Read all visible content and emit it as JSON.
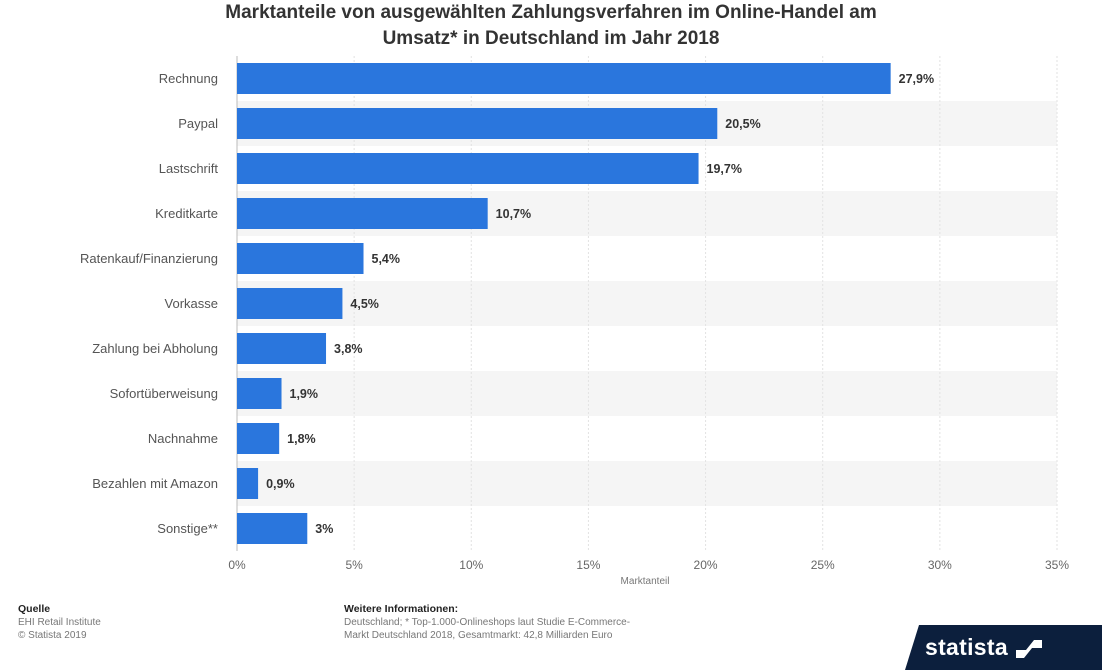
{
  "chart_data": {
    "type": "bar",
    "orientation": "horizontal",
    "title_lines": [
      "Marktanteile von ausgewählten Zahlungsverfahren im Online-Handel am",
      "Umsatz* in Deutschland im Jahr 2018"
    ],
    "xlabel": "Marktanteil",
    "xlim": [
      0,
      35
    ],
    "x_ticks": [
      0,
      5,
      10,
      15,
      20,
      25,
      30,
      35
    ],
    "x_tick_labels": [
      "0%",
      "5%",
      "10%",
      "15%",
      "20%",
      "25%",
      "30%",
      "35%"
    ],
    "categories": [
      "Rechnung",
      "Paypal",
      "Lastschrift",
      "Kreditkarte",
      "Ratenkauf/Finanzierung",
      "Vorkasse",
      "Zahlung bei Abholung",
      "Sofortüberweisung",
      "Nachnahme",
      "Bezahlen mit Amazon",
      "Sonstige**"
    ],
    "values": [
      27.9,
      20.5,
      19.7,
      10.7,
      5.4,
      4.5,
      3.8,
      1.9,
      1.8,
      0.9,
      3
    ],
    "value_labels": [
      "27,9%",
      "20,5%",
      "19,7%",
      "10,7%",
      "5,4%",
      "4,5%",
      "3,8%",
      "1,9%",
      "1,8%",
      "0,9%",
      "3%"
    ],
    "bar_color": "#2a76dd",
    "grid": true,
    "alternating_row_band_color": "#f5f5f5"
  },
  "footer": {
    "source_heading": "Quelle",
    "source_lines": [
      "EHI Retail Institute",
      "© Statista 2019"
    ],
    "info_heading": "Weitere Informationen:",
    "info_lines": [
      "Deutschland; * Top-1.000-Onlineshops laut Studie E-Commerce-",
      "Markt Deutschland 2018, Gesamtmarkt: 42,8 Milliarden Euro"
    ]
  },
  "brand": {
    "logo_text": "statista",
    "logo_background": "#0c1f3d"
  }
}
